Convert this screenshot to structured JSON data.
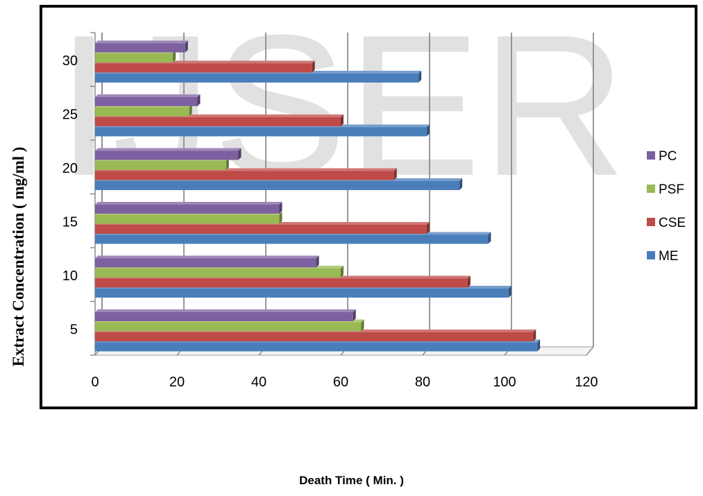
{
  "watermark": "IJSER",
  "chart_data": {
    "type": "bar",
    "orientation": "horizontal",
    "style": "3d",
    "xlabel": "Death Time ( Min. )",
    "ylabel": "Extract  Concentration ( mg/ml )",
    "xlim": [
      0,
      120
    ],
    "xticks": [
      0,
      20,
      40,
      60,
      80,
      100,
      120
    ],
    "categories": [
      "5",
      "10",
      "15",
      "20",
      "25",
      "30"
    ],
    "grid": true,
    "legend_position": "right",
    "series": [
      {
        "name": "ME",
        "color": "#4a7ebb",
        "values": [
          108,
          101,
          96,
          89,
          81,
          79
        ]
      },
      {
        "name": "CSE",
        "color": "#be4b48",
        "values": [
          107,
          91,
          81,
          73,
          60,
          53
        ]
      },
      {
        "name": "PSF",
        "color": "#98b954",
        "values": [
          65,
          60,
          45,
          32,
          23,
          19
        ]
      },
      {
        "name": "PC",
        "color": "#7d60a0",
        "values": [
          63,
          54,
          45,
          35,
          25,
          22
        ]
      }
    ]
  }
}
